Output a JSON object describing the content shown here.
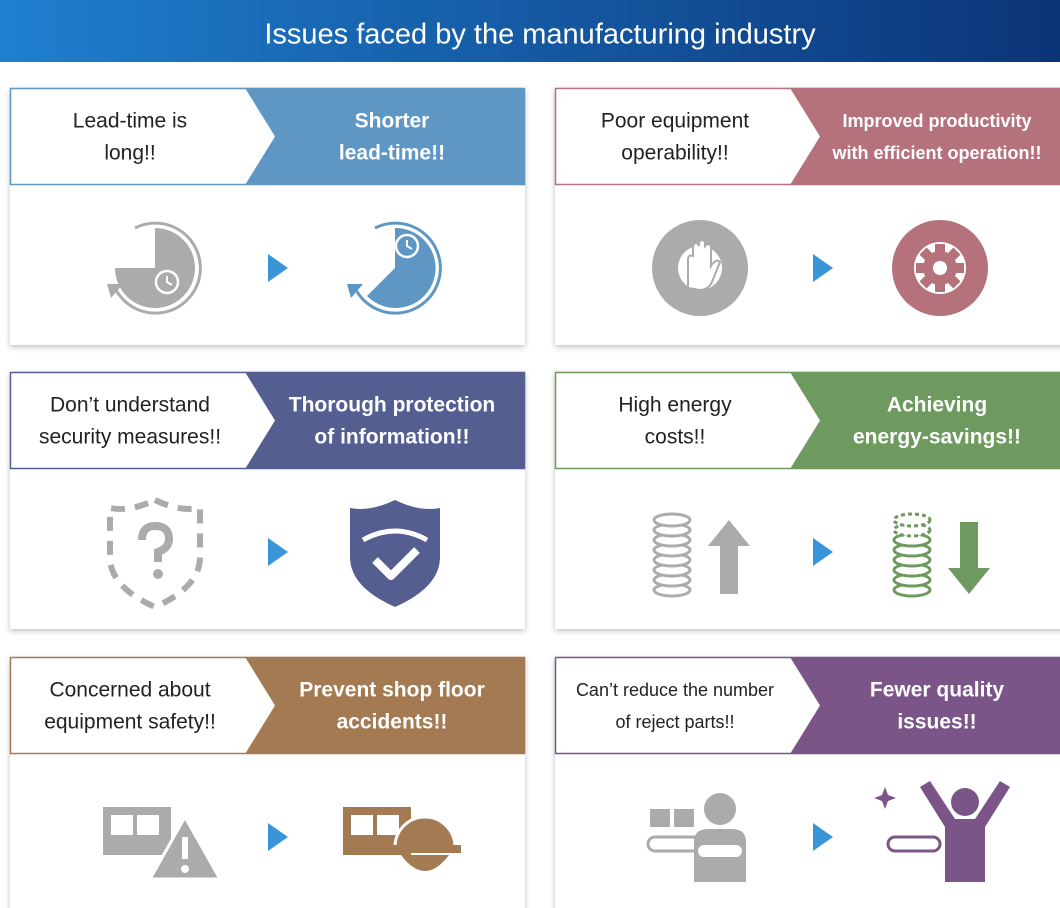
{
  "title": "Issues faced by the manufacturing industry",
  "cards": [
    {
      "problem": [
        "Lead-time is",
        "long!!"
      ],
      "solution": [
        "Shorter",
        "lead-time!!"
      ],
      "color": "#5f97c4"
    },
    {
      "problem": [
        "Poor equipment",
        "operability!!"
      ],
      "solution": [
        "Improved productivity",
        "with efficient operation!!"
      ],
      "color": "#b5727d"
    },
    {
      "problem": [
        "Don’t understand",
        "security measures!!"
      ],
      "solution": [
        "Thorough protection",
        "of information!!"
      ],
      "color": "#555e90"
    },
    {
      "problem": [
        "High energy",
        "costs!!"
      ],
      "solution": [
        "Achieving",
        "energy-savings!!"
      ],
      "color": "#6e9a60"
    },
    {
      "problem": [
        "Concerned about",
        "equipment safety!!"
      ],
      "solution": [
        "Prevent shop floor",
        "accidents!!"
      ],
      "color": "#a47a52"
    },
    {
      "problem": [
        "Can’t reduce the number",
        "of reject parts!!"
      ],
      "solution": [
        "Fewer quality",
        "issues!!"
      ],
      "color": "#7c5588"
    }
  ]
}
